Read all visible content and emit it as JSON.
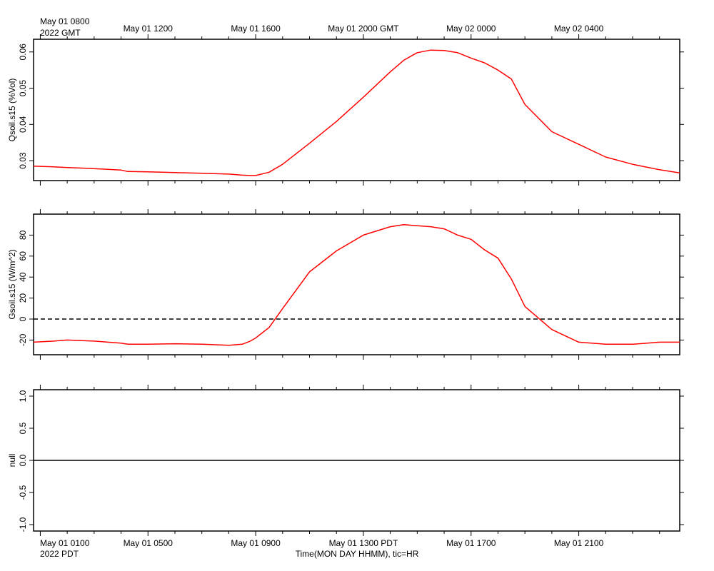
{
  "top_axis": {
    "labels": [
      "May 01 0800",
      "May 01 1200",
      "May 01 1600",
      "May 01 2000 GMT",
      "May 02 0000",
      "May 02 0400"
    ],
    "year_label": "2022 GMT"
  },
  "bottom_axis": {
    "labels": [
      "May 01 0100",
      "May 01 0500",
      "May 01 0900",
      "May 01 1300 PDT",
      "May 01 1700",
      "May 01 2100"
    ],
    "year_label": "2022 PDT",
    "title": "Time(MON DAY HHMM), tic=HR"
  },
  "chart_data": [
    {
      "type": "line",
      "ylabel": "Qsoil.s15 (%Vol)",
      "ylim": [
        0.0245,
        0.0635
      ],
      "yticks": [
        0.03,
        0.04,
        0.05,
        0.06
      ],
      "ytick_labels": [
        "0.03",
        "0.04",
        "0.05",
        "0.06"
      ],
      "x_unit": "hours since May 01 0800 GMT",
      "xlim": [
        -0.25,
        23.75
      ],
      "grid": false,
      "series": [
        {
          "color": "#ff0000",
          "x": [
            -0.25,
            0.5,
            1,
            2,
            3,
            3.25,
            4,
            5,
            6,
            7,
            7.5,
            7.8,
            8,
            8.5,
            9,
            10,
            11,
            12,
            13,
            13.5,
            14,
            14.5,
            15,
            15.5,
            16,
            16.5,
            17,
            17.5,
            18,
            19,
            20,
            21,
            22,
            23,
            23.75
          ],
          "y": [
            0.0285,
            0.0283,
            0.0281,
            0.0278,
            0.0274,
            0.027,
            0.0269,
            0.0267,
            0.0265,
            0.0263,
            0.026,
            0.0259,
            0.0259,
            0.0268,
            0.029,
            0.0348,
            0.0408,
            0.0475,
            0.0545,
            0.0577,
            0.0598,
            0.0605,
            0.0604,
            0.0598,
            0.0583,
            0.057,
            0.055,
            0.0525,
            0.0455,
            0.038,
            0.0345,
            0.031,
            0.029,
            0.0275,
            0.0266
          ]
        }
      ]
    },
    {
      "type": "line",
      "ylabel": "Gsoil.s15 (W/m^2)",
      "ylim": [
        -34,
        100
      ],
      "yticks": [
        -20,
        0,
        20,
        40,
        60,
        80
      ],
      "ytick_labels": [
        "-20",
        "0",
        "20",
        "40",
        "60",
        "80"
      ],
      "reference_line": 0,
      "x_unit": "hours since May 01 0100 PDT",
      "xlim": [
        -0.25,
        23.75
      ],
      "grid": false,
      "series": [
        {
          "color": "#ff0000",
          "x": [
            -0.25,
            0.5,
            1,
            2,
            3,
            3.25,
            4,
            5,
            6,
            7,
            7.5,
            7.8,
            8,
            8.5,
            9,
            10,
            11,
            12,
            13,
            13.5,
            14,
            14.5,
            15,
            15.5,
            16,
            16.5,
            17,
            17.5,
            18,
            19,
            20,
            21,
            22,
            23,
            23.75
          ],
          "y": [
            -22,
            -21,
            -20,
            -21,
            -23,
            -24,
            -24,
            -23.5,
            -24,
            -25,
            -24,
            -21,
            -18,
            -8,
            10,
            45,
            65,
            80,
            88,
            90,
            89,
            88,
            86,
            80,
            76,
            66,
            58,
            38,
            12,
            -10,
            -22,
            -24,
            -24,
            -22,
            -22
          ]
        }
      ]
    },
    {
      "type": "line",
      "ylabel": "null",
      "ylim": [
        -1.1,
        1.1
      ],
      "yticks": [
        -1.0,
        -0.5,
        0.0,
        0.5,
        1.0
      ],
      "ytick_labels": [
        "-1.0",
        "-0.5",
        "0.0",
        "0.5",
        "1.0"
      ],
      "x_unit": "hours since May 01 0100 PDT",
      "xlim": [
        -0.25,
        23.75
      ],
      "grid": false,
      "series": [
        {
          "color": "#000000",
          "x": [
            -0.25,
            23.75
          ],
          "y": [
            0,
            0
          ]
        }
      ]
    }
  ]
}
